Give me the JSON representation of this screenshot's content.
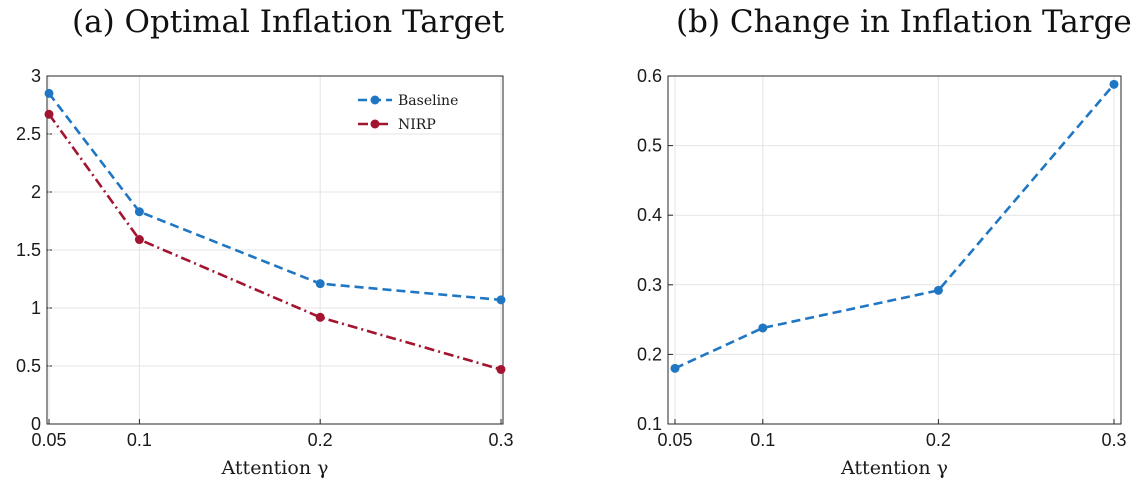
{
  "chart_data": [
    {
      "type": "line",
      "title": "(a) Optimal Inflation Target",
      "xlabel": "Attention γ",
      "ylabel": "",
      "x": [
        0.05,
        0.1,
        0.2,
        0.3
      ],
      "x_ticks": [
        "0.05",
        "0.1",
        "0.2",
        "0.3"
      ],
      "xlim": [
        0.05,
        0.3
      ],
      "ylim": [
        0,
        3
      ],
      "y_ticks": [
        "0",
        "0.5",
        "1",
        "1.5",
        "2",
        "2.5",
        "3"
      ],
      "grid": true,
      "legend_position": "top-right",
      "series": [
        {
          "name": "Baseline",
          "values": [
            2.85,
            1.83,
            1.21,
            1.07
          ],
          "color": "#1f77c4",
          "style": "dashed"
        },
        {
          "name": "NIRP",
          "values": [
            2.67,
            1.59,
            0.92,
            0.47
          ],
          "color": "#a2142f",
          "style": "dashdot"
        }
      ]
    },
    {
      "type": "line",
      "title": "(b) Change in Inflation Target",
      "xlabel": "Attention γ",
      "ylabel": "",
      "x": [
        0.05,
        0.1,
        0.2,
        0.3
      ],
      "x_ticks": [
        "0.05",
        "0.1",
        "0.2",
        "0.3"
      ],
      "xlim": [
        0.05,
        0.3
      ],
      "ylim": [
        0.1,
        0.6
      ],
      "y_ticks": [
        "0.1",
        "0.2",
        "0.3",
        "0.4",
        "0.5",
        "0.6"
      ],
      "grid": true,
      "series": [
        {
          "values": [
            0.18,
            0.238,
            0.292,
            0.588
          ],
          "color": "#1f77c4",
          "style": "dashed"
        }
      ]
    }
  ]
}
